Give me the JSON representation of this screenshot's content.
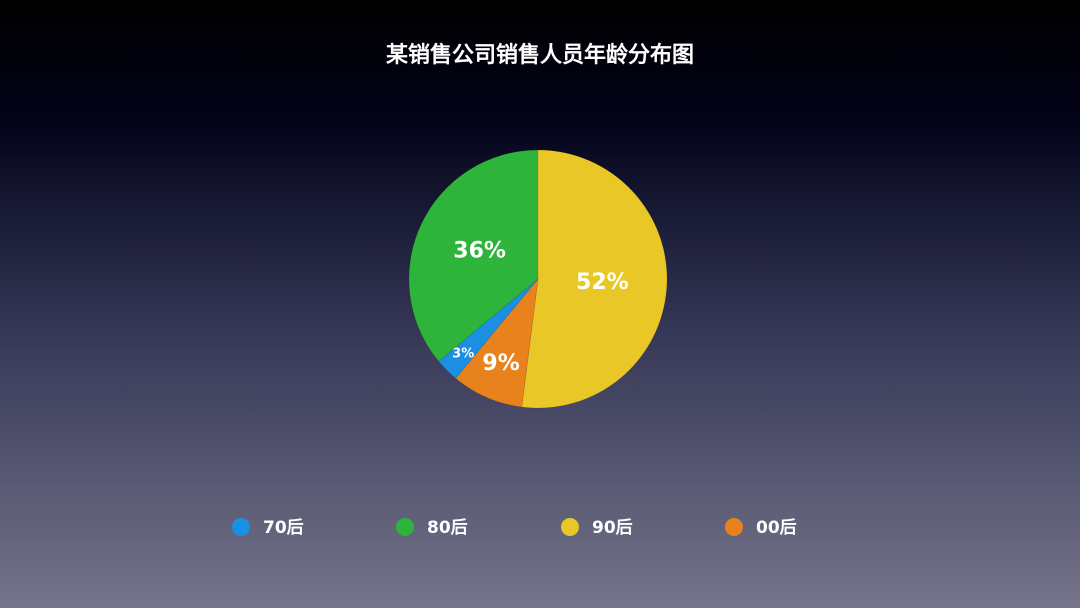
{
  "chart_data": {
    "type": "pie",
    "title": "某销售公司销售人员年龄分布图",
    "categories": [
      "70后",
      "80后",
      "90后",
      "00后"
    ],
    "values": [
      3,
      36,
      52,
      9
    ],
    "value_labels": [
      "3%",
      "36%",
      "52%",
      "9%"
    ],
    "colors": [
      "#1b8fe2",
      "#2eb33b",
      "#e9c726",
      "#e8821d"
    ],
    "legend": "bottom"
  }
}
